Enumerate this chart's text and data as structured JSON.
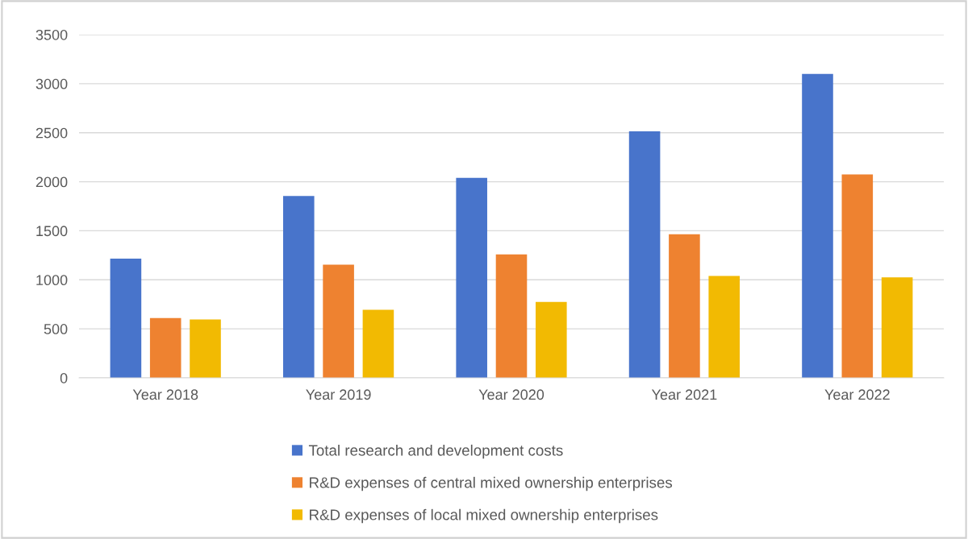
{
  "chart_data": {
    "type": "bar",
    "categories": [
      "Year 2018",
      "Year 2019",
      "Year 2020",
      "Year 2021",
      "Year 2022"
    ],
    "series": [
      {
        "name": "Total research and development costs",
        "color": "#4874cb",
        "values": [
          1215,
          1855,
          2040,
          2515,
          3100
        ]
      },
      {
        "name": "R&D expenses of central mixed ownership enterprises",
        "color": "#ee8230",
        "values": [
          610,
          1155,
          1260,
          1465,
          2075
        ]
      },
      {
        "name": "R&D expenses of local mixed ownership enterprises",
        "color": "#f2ba02",
        "values": [
          595,
          695,
          775,
          1040,
          1025
        ]
      }
    ],
    "ylim": [
      0,
      3500
    ],
    "yticks": [
      0,
      500,
      1000,
      1500,
      2000,
      2500,
      3000,
      3500
    ],
    "grid": "y",
    "legend": "bottom"
  }
}
